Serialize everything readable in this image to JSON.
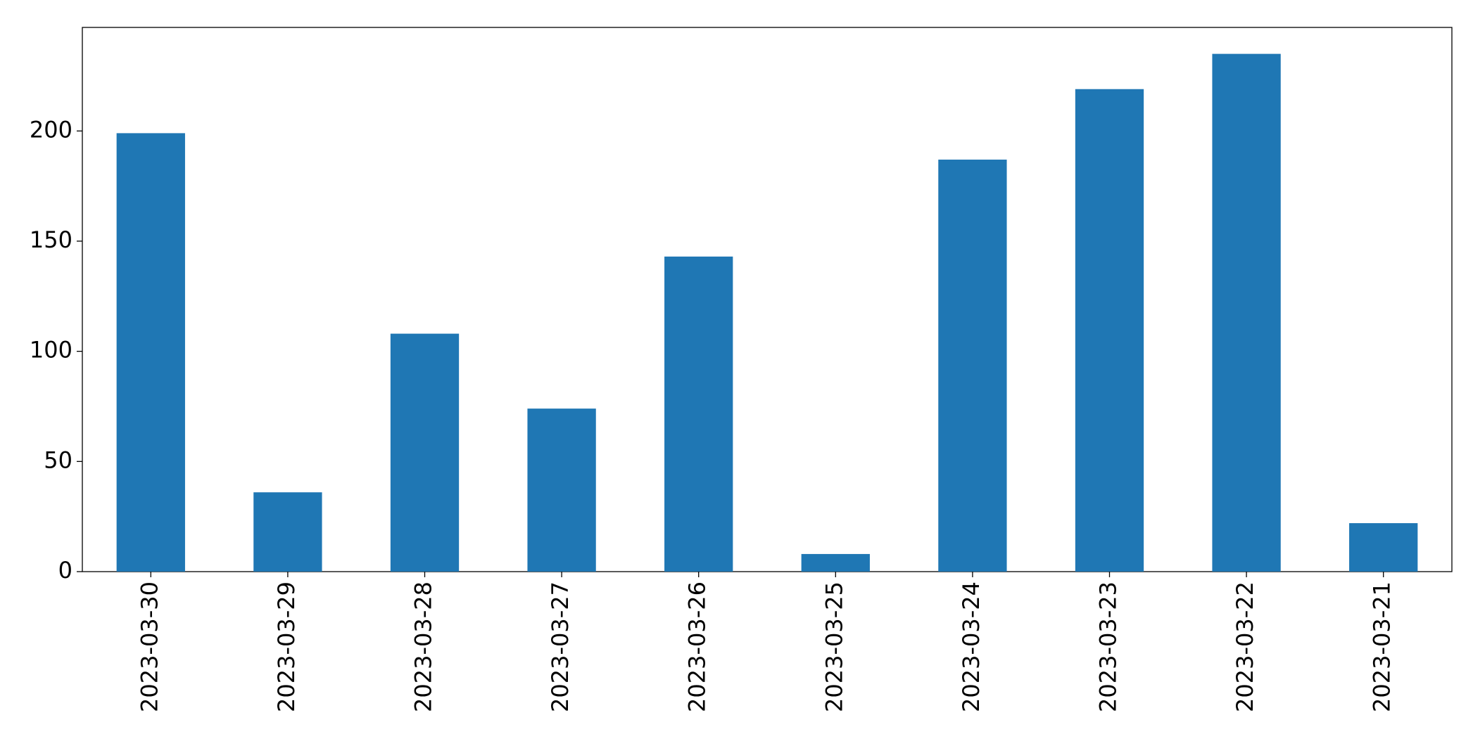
{
  "chart_data": {
    "type": "bar",
    "categories": [
      "2023-03-30",
      "2023-03-29",
      "2023-03-28",
      "2023-03-27",
      "2023-03-26",
      "2023-03-25",
      "2023-03-24",
      "2023-03-23",
      "2023-03-22",
      "2023-03-21"
    ],
    "values": [
      199,
      36,
      108,
      74,
      143,
      8,
      187,
      219,
      235,
      22
    ],
    "color": "#1f77b4",
    "ylim": [
      0,
      247
    ],
    "yticks": [
      0,
      50,
      100,
      150,
      200
    ],
    "grid": false
  }
}
